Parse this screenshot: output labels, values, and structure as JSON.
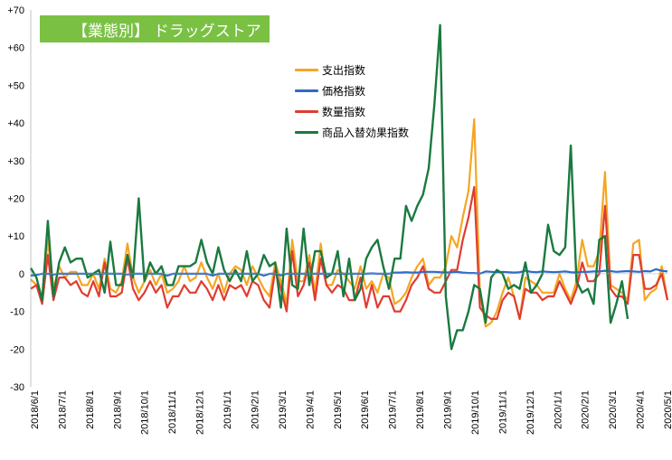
{
  "title_label": "【業態別】 ドラッグストア",
  "colors": {
    "title_bg": "#7ac143",
    "spending": "#f5a623",
    "price": "#2e6bc7",
    "quantity": "#e03c31",
    "switching": "#1a7a3f"
  },
  "chart_data": {
    "type": "line",
    "title": "【業態別】 ドラッグストア",
    "ylim": [
      -30,
      70
    ],
    "yticks": [
      "+70",
      "+60",
      "+50",
      "+40",
      "+30",
      "+20",
      "+10",
      "0",
      "-10",
      "-20",
      "-30"
    ],
    "ytick_values": [
      70,
      60,
      50,
      40,
      30,
      20,
      10,
      0,
      -10,
      -20,
      -30
    ],
    "xticks": [
      "2018/6/1",
      "2018/7/1",
      "2018/8/1",
      "2018/9/1",
      "2018/10/1",
      "2018/11/1",
      "2018/12/1",
      "2019/1/1",
      "2019/2/1",
      "2019/3/1",
      "2019/4/1",
      "2019/5/1",
      "2019/6/1",
      "2019/7/1",
      "2019/8/1",
      "2019/9/1",
      "2019/10/1",
      "2019/11/1",
      "2019/12/1",
      "2020/1/1",
      "2020/2/1",
      "2020/3/1",
      "2020/4/1",
      "2020/5/1"
    ],
    "legend_position": "upper-center",
    "grid": false,
    "series": [
      {
        "name": "支出指数",
        "color": "#f5a623",
        "values": [
          -1.5,
          -3,
          -6,
          9,
          -4,
          2,
          -1,
          0.5,
          0.5,
          -3,
          -3,
          0,
          -4,
          4,
          -4,
          -5,
          -2,
          8,
          -1,
          -5,
          -2,
          1,
          -3,
          0,
          -5,
          -4,
          -2,
          2,
          -2,
          -1,
          3,
          -1,
          -4,
          0,
          -5,
          0,
          2,
          1,
          -3,
          2,
          -1,
          -4,
          -6,
          3,
          -2,
          -8,
          9,
          -2,
          -2,
          5,
          -5,
          8,
          -3,
          -3,
          1,
          0,
          -2,
          -4,
          2,
          -4,
          -2,
          -5,
          0,
          -1,
          -8,
          -7,
          -5,
          -1,
          2,
          4,
          -3,
          -1,
          -1,
          2,
          10,
          7,
          15,
          22,
          41,
          -5,
          -14,
          -13,
          -10,
          -5,
          -1,
          -6,
          -12,
          -1,
          -2,
          -3,
          -5,
          -5,
          -5,
          0,
          -4,
          -7,
          -2,
          9,
          2,
          2,
          6,
          27,
          -3,
          -4,
          -5,
          -7,
          8,
          9,
          -7,
          -5,
          -4,
          2,
          -7
        ]
      },
      {
        "name": "価格指数",
        "color": "#2e6bc7",
        "values": [
          -0.5,
          -0.3,
          0,
          0,
          -0.2,
          0,
          0,
          0,
          0,
          0,
          0,
          0,
          -0.1,
          0.1,
          0,
          0,
          0,
          -0.2,
          0,
          0,
          0,
          0,
          0,
          0,
          -0.5,
          0,
          0,
          0,
          0,
          0,
          0,
          0,
          -0.5,
          0,
          0,
          0,
          0,
          0,
          0,
          0,
          0,
          -0.5,
          0,
          0,
          -0.4,
          0,
          0,
          0,
          0,
          0,
          0,
          0,
          0,
          0,
          0,
          0,
          0,
          0,
          0,
          0,
          0.1,
          0,
          0,
          0,
          0.3,
          0.3,
          0.4,
          0.3,
          0.3,
          0.5,
          0.5,
          0.5,
          0.4,
          0.3,
          0.4,
          0.5,
          0.3,
          0.2,
          0.2,
          0,
          0.6,
          0.5,
          0.4,
          0.5,
          0.4,
          0.3,
          0.4,
          0.8,
          0.5,
          0.4,
          0.6,
          0.5,
          0.4,
          0.5,
          0.6,
          0.4,
          0.3,
          0.5,
          0.5,
          0.6,
          0.6,
          0.8,
          0.7,
          0.5,
          0.6,
          0.7,
          0.6,
          0.5,
          0.7,
          0.6,
          1.2,
          0.8,
          0.6
        ]
      },
      {
        "name": "数量指数",
        "color": "#e03c31",
        "values": [
          -4,
          -3,
          -8,
          5,
          -7,
          -1,
          -1,
          -3,
          -2,
          -5,
          -6,
          -2,
          -6,
          3,
          -6,
          -6,
          -5,
          4,
          -4,
          -7,
          -5,
          -2,
          -5,
          -3,
          -9,
          -6,
          -6,
          -3,
          -5,
          -5,
          -2,
          -4,
          -7,
          -3,
          -7,
          -3,
          -4,
          -3,
          -6,
          -2,
          -3,
          -7,
          -9,
          1,
          -4,
          -10,
          6,
          -6,
          -3,
          3,
          -7,
          4,
          -3,
          -5,
          -3,
          -4,
          -7,
          -7,
          -1,
          -9,
          -3,
          -9,
          -6,
          -6,
          -10,
          -10,
          -7,
          -3,
          -1,
          2,
          -4,
          -5,
          -5,
          -2,
          1,
          1,
          9,
          15,
          23,
          -9,
          -11,
          -12,
          -12,
          -7,
          -5,
          -6,
          -12,
          -4,
          -5,
          -5,
          -7,
          -6,
          -6,
          -2,
          -5,
          -8,
          -4,
          3,
          -2,
          -2,
          0,
          18,
          -4,
          -6,
          -6,
          -8,
          5,
          5,
          -4,
          -4,
          -3,
          0,
          -7
        ]
      },
      {
        "name": "商品入替効果指数",
        "color": "#1a7a3f",
        "values": [
          1.5,
          -1,
          -7,
          14,
          -6,
          3,
          7,
          3,
          4,
          4,
          -1,
          0,
          1,
          -5,
          8.5,
          -3,
          -3,
          5,
          -1,
          20,
          -2,
          3,
          0,
          2,
          -3,
          -3,
          2,
          2,
          2,
          3,
          9,
          3,
          0,
          7,
          1,
          -2,
          1,
          -2,
          6,
          -2,
          0,
          5,
          2,
          3,
          -9,
          12,
          -3,
          -4,
          12,
          -3,
          6,
          6,
          -1,
          0,
          6,
          -6,
          4,
          -7,
          -4,
          4,
          7,
          9,
          2,
          -4,
          4,
          4,
          18,
          14,
          18,
          21,
          28,
          45,
          66,
          -6,
          -20,
          -15,
          -15,
          -10,
          -3,
          -4,
          -13,
          -1,
          1,
          0,
          -4,
          -3,
          -4,
          3,
          -5,
          -3,
          0,
          13,
          6,
          5,
          7,
          34,
          -2,
          -5,
          -4,
          -8,
          9,
          10,
          -13,
          -8,
          -2,
          -12
        ]
      }
    ]
  }
}
